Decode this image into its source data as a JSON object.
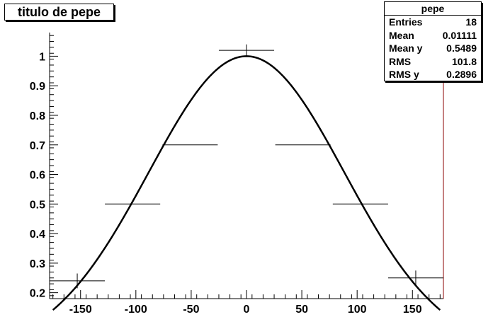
{
  "title": "titulo de pepe",
  "stats": {
    "name": "pepe",
    "rows": [
      {
        "label": "Entries",
        "value": "18"
      },
      {
        "label": "Mean",
        "value": "0.01111"
      },
      {
        "label": "Mean y",
        "value": "0.5489"
      },
      {
        "label": "RMS",
        "value": "101.8"
      },
      {
        "label": "RMS y",
        "value": "0.2896"
      }
    ]
  },
  "colors": {
    "frame": "#000000",
    "frame_right": "#8b0000",
    "curve": "#000000",
    "points": "#000000"
  },
  "chart_data": {
    "type": "line",
    "title": "titulo de pepe",
    "xlabel": "",
    "ylabel": "",
    "xlim": [
      -178,
      178
    ],
    "ylim": [
      0.18,
      1.08
    ],
    "x_ticks": [
      -150,
      -100,
      -50,
      0,
      50,
      100,
      150
    ],
    "y_ticks": [
      0.2,
      0.3,
      0.4,
      0.5,
      0.6,
      0.7,
      0.8,
      0.9,
      1
    ],
    "x_tick_labels": [
      "-150",
      "-100",
      "-50",
      "0",
      "50",
      "100",
      "150"
    ],
    "y_tick_labels": [
      "0.2",
      "0.3",
      "0.4",
      "0.5",
      "0.6",
      "0.7",
      "0.8",
      "0.9",
      "1"
    ],
    "grid": false,
    "series": [
      {
        "kind": "profile_points",
        "points": [
          {
            "x": -153,
            "y": 0.24,
            "xerr": 25,
            "yerr": 0.025
          },
          {
            "x": -103,
            "y": 0.5,
            "xerr": 25,
            "yerr": 0
          },
          {
            "x": -51,
            "y": 0.7,
            "xerr": 25,
            "yerr": 0
          },
          {
            "x": 0,
            "y": 1.02,
            "xerr": 25,
            "yerr": 0.02
          },
          {
            "x": 51,
            "y": 0.7,
            "xerr": 25,
            "yerr": 0
          },
          {
            "x": 103,
            "y": 0.5,
            "xerr": 25,
            "yerr": 0
          },
          {
            "x": 153,
            "y": 0.25,
            "xerr": 25,
            "yerr": 0.025
          }
        ]
      },
      {
        "kind": "fit_curve",
        "function": "gaussian",
        "amplitude": 1.0,
        "mean": 0,
        "sigma": 88.5,
        "x_range": [
          -175,
          175
        ]
      }
    ]
  }
}
